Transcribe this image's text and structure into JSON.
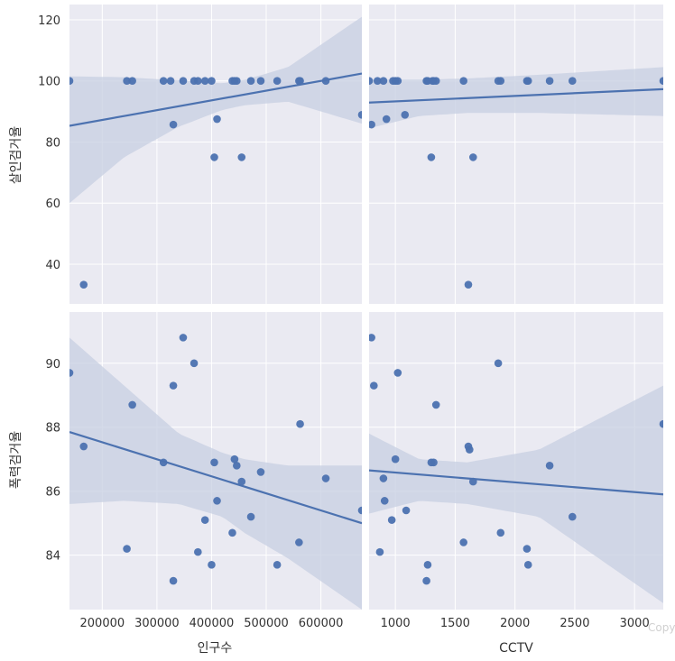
{
  "watermark": "Copy",
  "colors": {
    "panel_bg": "#eaeaf2",
    "grid": "#ffffff",
    "point": "#4c72b0",
    "line": "#4c72b0",
    "band": "#c7cfe2"
  },
  "chart_data": {
    "type": "scatter",
    "layout": "2x2 pairgrid with linear regression lines and 95% confidence bands",
    "x_vars": [
      {
        "label": "인구수",
        "lim": [
          140000,
          675000
        ],
        "ticks": [
          200000,
          300000,
          400000,
          500000,
          600000
        ]
      },
      {
        "label": "CCTV",
        "lim": [
          780,
          3240
        ],
        "ticks": [
          1000,
          1500,
          2000,
          2500,
          3000
        ]
      }
    ],
    "y_vars": [
      {
        "label": "살인검거율",
        "lim": [
          27,
          125
        ],
        "ticks": [
          40,
          60,
          80,
          100,
          120
        ]
      },
      {
        "label": "폭력검거율",
        "lim": [
          82.3,
          91.6
        ],
        "ticks": [
          84,
          86,
          88,
          90
        ]
      }
    ],
    "panels": [
      {
        "row": 0,
        "col": 0,
        "x": [
          140000,
          166000,
          245000,
          255000,
          312000,
          325000,
          330000,
          348000,
          368000,
          375000,
          388000,
          400000,
          405000,
          410000,
          438000,
          442000,
          446000,
          455000,
          472000,
          490000,
          520000,
          560000,
          562000,
          609000,
          675000
        ],
        "y": [
          100,
          33.3,
          100,
          100,
          100,
          100,
          85.7,
          100,
          100,
          100,
          100,
          100,
          75,
          87.5,
          100,
          100,
          100,
          75,
          100,
          100,
          100,
          100,
          100,
          100,
          88.9
        ],
        "fit": {
          "x": [
            140000,
            675000
          ],
          "y": [
            85.3,
            102.4
          ]
        },
        "band": {
          "x": [
            140000,
            240000,
            340000,
            420000,
            460000,
            540000,
            675000
          ],
          "upper": [
            101.5,
            101.2,
            100.2,
            99.2,
            100.3,
            104.5,
            121
          ],
          "lower": [
            60,
            75,
            85,
            90.5,
            92,
            93.2,
            86
          ]
        }
      },
      {
        "row": 0,
        "col": 1,
        "x": [
          780,
          800,
          850,
          900,
          925,
          980,
          1000,
          1020,
          1080,
          1260,
          1270,
          1300,
          1310,
          1320,
          1340,
          1570,
          1610,
          1650,
          1860,
          1880,
          2100,
          2110,
          2290,
          2480,
          3240
        ],
        "y": [
          100,
          85.7,
          100,
          100,
          87.5,
          100,
          100,
          100,
          88.9,
          100,
          100,
          75,
          100,
          100,
          100,
          100,
          33.3,
          75,
          100,
          100,
          100,
          100,
          100,
          100,
          100
        ],
        "fit": {
          "x": [
            780,
            3240
          ],
          "y": [
            92.9,
            97.3
          ]
        },
        "band": {
          "x": [
            780,
            1200,
            1600,
            2200,
            3240
          ],
          "upper": [
            100.5,
            100.4,
            100.8,
            102,
            104.5
          ],
          "lower": [
            84.5,
            88.5,
            89.5,
            89.5,
            88.5
          ]
        }
      },
      {
        "row": 1,
        "col": 0,
        "x": [
          140000,
          166000,
          245000,
          255000,
          312000,
          330000,
          330000,
          348000,
          368000,
          375000,
          388000,
          400000,
          405000,
          410000,
          438000,
          442000,
          446000,
          455000,
          472000,
          490000,
          520000,
          560000,
          562000,
          609000,
          675000
        ],
        "y": [
          89.7,
          87.4,
          84.2,
          88.7,
          86.9,
          89.3,
          83.2,
          90.8,
          90.0,
          84.1,
          85.1,
          83.7,
          86.9,
          85.7,
          84.7,
          87.0,
          86.8,
          86.3,
          85.2,
          86.6,
          83.7,
          84.4,
          88.1,
          86.4,
          85.4
        ],
        "fit": {
          "x": [
            140000,
            675000
          ],
          "y": [
            87.85,
            85.0
          ]
        },
        "band": {
          "x": [
            140000,
            240000,
            340000,
            420000,
            460000,
            540000,
            675000
          ],
          "upper": [
            90.8,
            89.3,
            87.8,
            87.2,
            87.0,
            86.8,
            86.8
          ],
          "lower": [
            85.6,
            85.7,
            85.6,
            85.2,
            84.7,
            83.9,
            82.3
          ]
        }
      },
      {
        "row": 1,
        "col": 1,
        "x": [
          800,
          820,
          870,
          900,
          910,
          970,
          1000,
          1020,
          1090,
          1260,
          1270,
          1300,
          1320,
          1340,
          1570,
          1610,
          1620,
          1650,
          1860,
          1880,
          2100,
          2110,
          2290,
          2480,
          3240
        ],
        "y": [
          90.8,
          89.3,
          84.1,
          86.4,
          85.7,
          85.1,
          87.0,
          89.7,
          85.4,
          83.2,
          83.7,
          86.9,
          86.9,
          88.7,
          84.4,
          87.4,
          87.3,
          86.3,
          90.0,
          84.7,
          84.2,
          83.7,
          86.8,
          85.2,
          88.1
        ],
        "fit": {
          "x": [
            780,
            3240
          ],
          "y": [
            86.65,
            85.9
          ]
        },
        "band": {
          "x": [
            780,
            1200,
            1600,
            2200,
            3240
          ],
          "upper": [
            87.8,
            87.0,
            86.9,
            87.3,
            89.3
          ],
          "lower": [
            85.3,
            85.7,
            85.6,
            85.2,
            82.5
          ]
        }
      }
    ]
  }
}
